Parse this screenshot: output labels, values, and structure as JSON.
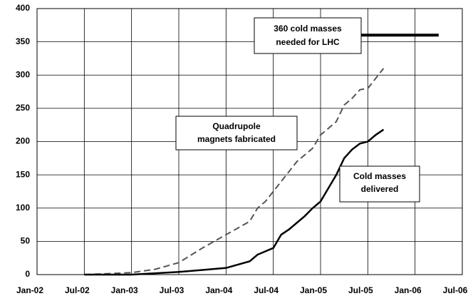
{
  "chart_data": {
    "type": "line",
    "x": [
      "2002-07",
      "2003-01",
      "2003-04",
      "2003-07",
      "2003-10",
      "2004-01",
      "2004-04",
      "2004-05",
      "2004-06",
      "2004-07",
      "2004-08",
      "2004-09",
      "2004-10",
      "2004-11",
      "2004-12",
      "2005-01",
      "2005-02",
      "2005-03",
      "2005-04",
      "2005-05",
      "2005-06",
      "2005-07",
      "2005-08",
      "2005-09"
    ],
    "series": [
      {
        "name": [
          "Quadrupole",
          "magnets fabricated"
        ],
        "color": "#555555",
        "style": "dashed",
        "values": [
          0,
          3,
          8,
          18,
          40,
          60,
          80,
          100,
          110,
          125,
          140,
          155,
          170,
          180,
          190,
          210,
          220,
          230,
          255,
          265,
          278,
          280,
          295,
          310
        ]
      },
      {
        "name": [
          "Cold masses",
          "delivered"
        ],
        "color": "#000000",
        "style": "solid",
        "values": [
          0,
          0,
          2,
          4,
          7,
          10,
          20,
          30,
          35,
          40,
          60,
          68,
          78,
          88,
          100,
          110,
          130,
          150,
          175,
          188,
          197,
          200,
          210,
          218
        ]
      }
    ],
    "annotation": {
      "text": [
        "360 cold masses",
        "needed for LHC"
      ],
      "value": 360,
      "x": [
        "2005-05",
        "2006-04"
      ]
    },
    "xlim": [
      "2002-01",
      "2006-07"
    ],
    "xticks": [
      {
        "value": "2002-01",
        "label": "Jan-02"
      },
      {
        "value": "2002-07",
        "label": "Jul-02"
      },
      {
        "value": "2003-01",
        "label": "Jan-03"
      },
      {
        "value": "2003-07",
        "label": "Jul-03"
      },
      {
        "value": "2004-01",
        "label": "Jan-04"
      },
      {
        "value": "2004-07",
        "label": "Jul-04"
      },
      {
        "value": "2005-01",
        "label": "Jan-05"
      },
      {
        "value": "2005-07",
        "label": "Jul-05"
      },
      {
        "value": "2006-01",
        "label": "Jan-06"
      },
      {
        "value": "2006-07",
        "label": "Jul-06"
      }
    ],
    "ylim": [
      0,
      400
    ],
    "yticks": [
      0,
      50,
      100,
      150,
      200,
      250,
      300,
      350,
      400
    ],
    "grid": true
  }
}
